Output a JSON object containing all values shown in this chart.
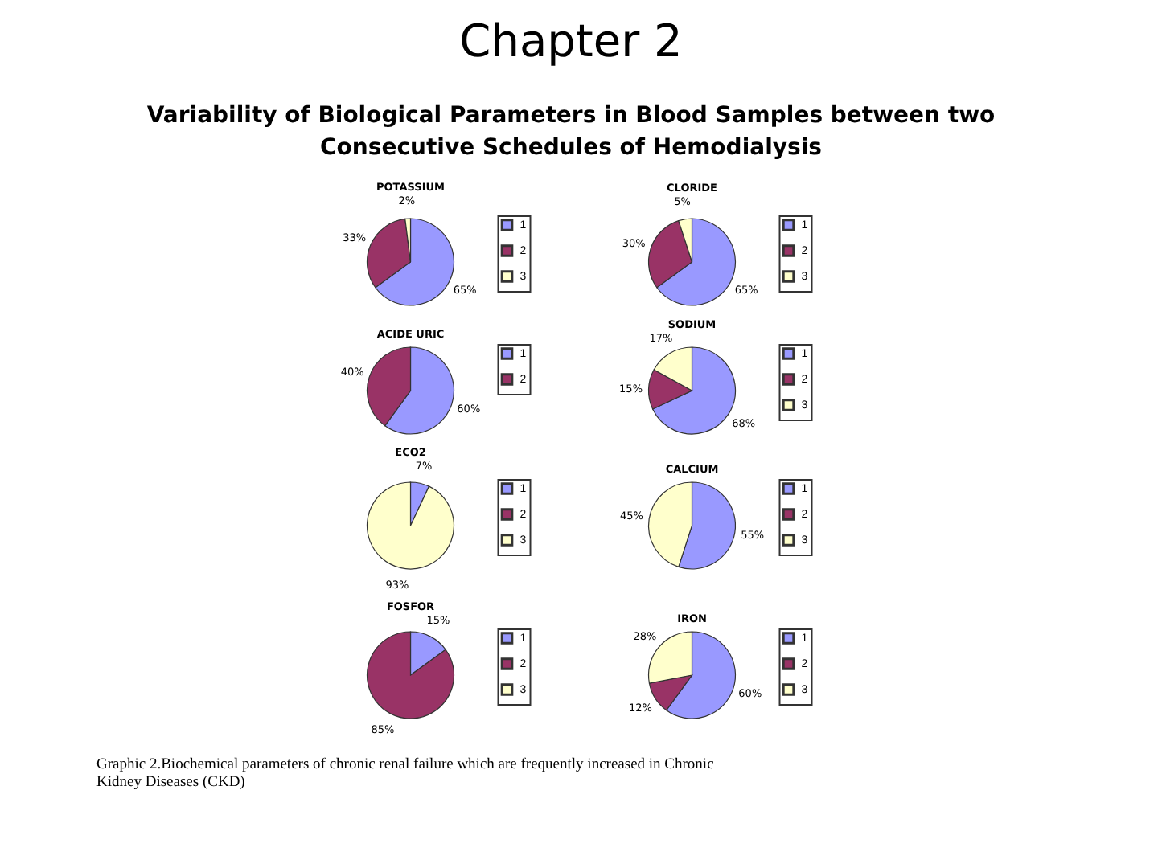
{
  "chart_data": [
    {
      "type": "other",
      "title": "Chapter 2",
      "subtitle": "Variability of Biological Parameters in Blood Samples between two Consecutive Schedules of Hemodialysis"
    },
    {
      "type": "pie",
      "title": "POTASSIUM",
      "categories": [
        "1",
        "2",
        "3"
      ],
      "values": [
        65,
        33,
        2
      ],
      "value_labels": [
        "65%",
        "33%",
        "2%"
      ],
      "colors": [
        "#9999ff",
        "#993366",
        "#ffffcc"
      ],
      "legend": "right"
    },
    {
      "type": "pie",
      "title": "CLORIDE",
      "categories": [
        "1",
        "2",
        "3"
      ],
      "values": [
        65,
        30,
        5
      ],
      "value_labels": [
        "65%",
        "30%",
        "5%"
      ],
      "colors": [
        "#9999ff",
        "#993366",
        "#ffffcc"
      ],
      "legend": "right"
    },
    {
      "type": "pie",
      "title": "ACIDE URIC",
      "categories": [
        "1",
        "2"
      ],
      "values": [
        60,
        40
      ],
      "value_labels": [
        "60%",
        "40%"
      ],
      "colors": [
        "#9999ff",
        "#993366"
      ],
      "legend": "right"
    },
    {
      "type": "pie",
      "title": "SODIUM",
      "categories": [
        "1",
        "2",
        "3"
      ],
      "values": [
        68,
        15,
        17
      ],
      "value_labels": [
        "68%",
        "15%",
        "17%"
      ],
      "colors": [
        "#9999ff",
        "#993366",
        "#ffffcc"
      ],
      "legend": "right"
    },
    {
      "type": "pie",
      "title": "ECO2",
      "categories": [
        "1",
        "2",
        "3"
      ],
      "values": [
        7,
        null,
        93
      ],
      "value_labels": [
        "7%",
        null,
        "93%"
      ],
      "colors": [
        "#9999ff",
        "#993366",
        "#ffffcc"
      ],
      "legend": "right"
    },
    {
      "type": "pie",
      "title": "CALCIUM",
      "categories": [
        "1",
        "2",
        "3"
      ],
      "values": [
        55,
        null,
        45
      ],
      "value_labels": [
        "55%",
        null,
        "45%"
      ],
      "colors": [
        "#9999ff",
        "#993366",
        "#ffffcc"
      ],
      "legend": "right"
    },
    {
      "type": "pie",
      "title": "FOSFOR",
      "categories": [
        "1",
        "2",
        "3"
      ],
      "values": [
        15,
        85,
        null
      ],
      "value_labels": [
        "15%",
        "85%",
        null
      ],
      "colors": [
        "#9999ff",
        "#993366",
        "#ffffcc"
      ],
      "legend": "right"
    },
    {
      "type": "pie",
      "title": "IRON",
      "categories": [
        "1",
        "2",
        "3"
      ],
      "values": [
        60,
        12,
        28
      ],
      "value_labels": [
        "60%",
        "12%",
        "28%"
      ],
      "colors": [
        "#9999ff",
        "#993366",
        "#ffffcc"
      ],
      "legend": "right"
    },
    {
      "type": "other",
      "annotations": [
        "Graphic 2.Biochemical parameters of chronic renal failure which are frequently increased in Chronic Kidney Diseases (CKD)"
      ]
    }
  ]
}
